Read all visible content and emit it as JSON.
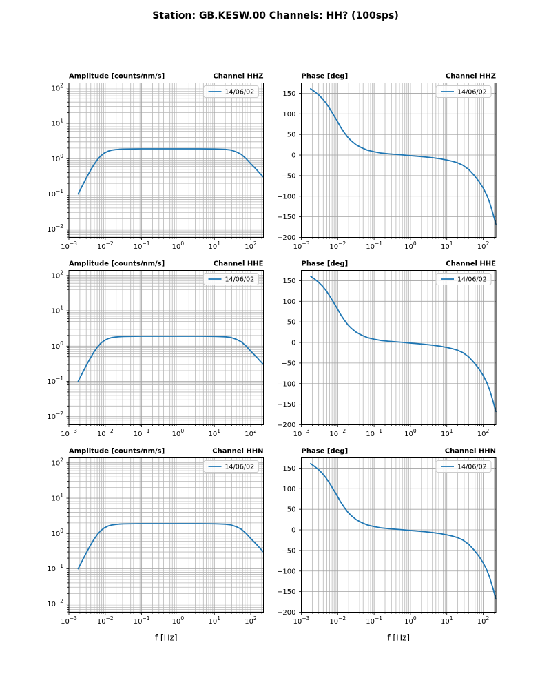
{
  "figure": {
    "title": "Station: GB.KESW.00 Channels: HH? (100sps)"
  },
  "colors": {
    "line": "#1f77b4",
    "grid_major": "#a3a3a3",
    "grid_minor": "#b8b8b8",
    "spine": "#000000",
    "legend_border": "#cccccc",
    "legend_bg": "#ffffff",
    "text": "#000000"
  },
  "chart_data": {
    "type": "line",
    "title": "Station: GB.KESW.00 Channels: HH? (100sps)",
    "legend_label": "14/06/02",
    "legend_position": "upper right",
    "grid": "both major and minor, on",
    "channels": [
      "HHZ",
      "HHE",
      "HHN"
    ],
    "x_axis": {
      "label": "f [Hz]",
      "scale": "log",
      "range_log10": [
        -3,
        2.35
      ],
      "tick_exponents": [
        -3,
        -2,
        -1,
        0,
        1,
        2
      ]
    },
    "columns": [
      {
        "kind": "amplitude",
        "title": "Amplitude [counts/nm/s]",
        "scale": "log",
        "range_log10": [
          -2.23,
          2.143
        ],
        "tick_exponents": [
          -2,
          -1,
          0,
          1,
          2
        ]
      },
      {
        "kind": "phase",
        "title": "Phase [deg]",
        "scale": "linear",
        "range": [
          -200,
          175
        ],
        "ticks": [
          150,
          100,
          50,
          0,
          -50,
          -100,
          -150,
          -200
        ]
      }
    ],
    "subplots": [
      {
        "row": 0,
        "col": 0,
        "title_left": "Amplitude [counts/nm/s]",
        "title_right": "Channel HHZ",
        "series": "amplitude",
        "xlabel": ""
      },
      {
        "row": 0,
        "col": 1,
        "title_left": "Phase [deg]",
        "title_right": "Channel HHZ",
        "series": "phase",
        "xlabel": ""
      },
      {
        "row": 1,
        "col": 0,
        "title_left": "Amplitude [counts/nm/s]",
        "title_right": "Channel HHE",
        "series": "amplitude",
        "xlabel": ""
      },
      {
        "row": 1,
        "col": 1,
        "title_left": "Phase [deg]",
        "title_right": "Channel HHE",
        "series": "phase",
        "xlabel": ""
      },
      {
        "row": 2,
        "col": 0,
        "title_left": "Amplitude [counts/nm/s]",
        "title_right": "Channel HHN",
        "series": "amplitude",
        "xlabel": "f [Hz]"
      },
      {
        "row": 2,
        "col": 1,
        "title_left": "Phase [deg]",
        "title_right": "Channel HHN",
        "series": "phase",
        "xlabel": "f [Hz]"
      }
    ],
    "frequencies_hz": [
      0.0018,
      0.002,
      0.0024,
      0.003,
      0.0038,
      0.0048,
      0.006,
      0.0075,
      0.0095,
      0.012,
      0.015,
      0.019,
      0.024,
      0.032,
      0.045,
      0.065,
      0.1,
      0.15,
      0.25,
      0.4,
      0.65,
      1.0,
      1.6,
      2.5,
      4.0,
      6.5,
      10,
      14,
      20,
      28,
      40,
      55,
      75,
      100,
      125,
      150,
      180,
      224
    ],
    "series": {
      "amplitude": {
        "label": "14/06/02",
        "units": "counts/nm/s",
        "values": [
          0.1,
          0.125,
          0.18,
          0.28,
          0.44,
          0.66,
          0.92,
          1.2,
          1.45,
          1.63,
          1.74,
          1.8,
          1.84,
          1.87,
          1.88,
          1.89,
          1.9,
          1.9,
          1.9,
          1.9,
          1.9,
          1.9,
          1.9,
          1.9,
          1.9,
          1.89,
          1.88,
          1.86,
          1.83,
          1.76,
          1.56,
          1.32,
          1.0,
          0.72,
          0.57,
          0.47,
          0.38,
          0.3
        ]
      },
      "phase": {
        "label": "14/06/02",
        "units": "deg",
        "values": [
          161,
          158,
          153,
          146,
          137,
          126,
          113,
          99,
          84,
          68,
          55,
          43,
          34,
          25,
          18,
          12,
          8,
          5,
          3,
          1.5,
          0,
          -1.5,
          -3,
          -4.5,
          -6.5,
          -9,
          -12,
          -15,
          -19,
          -25,
          -35,
          -48,
          -63,
          -80,
          -97,
          -115,
          -138,
          -168
        ]
      }
    }
  }
}
